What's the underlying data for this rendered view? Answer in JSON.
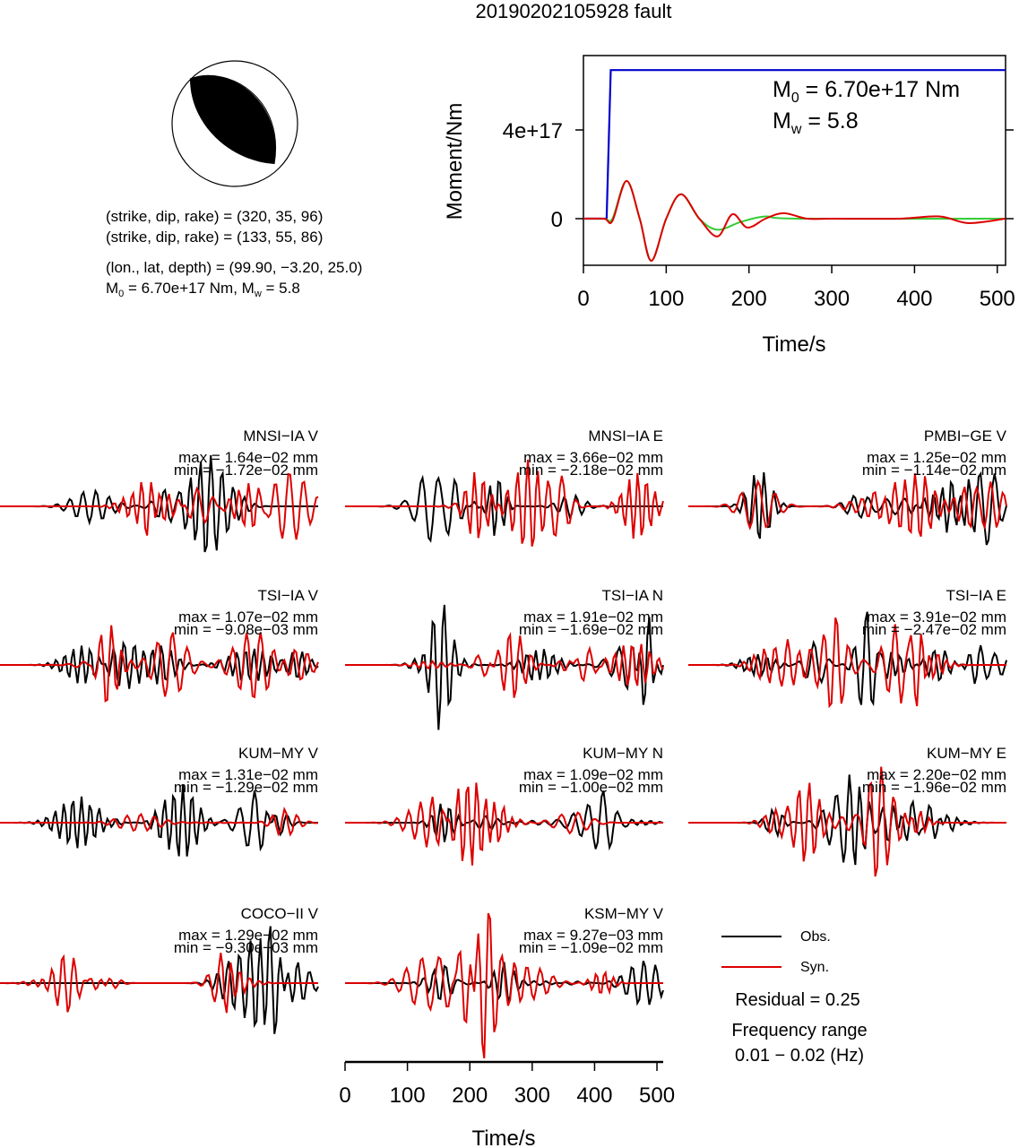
{
  "title": "20190202105928 fault",
  "colors": {
    "obs": "#000000",
    "syn": "#dd0000",
    "moment": "#0000cc",
    "stf": "#dd0000",
    "stf_model": "#33cc33"
  },
  "beachball": {
    "lines": [
      "(strike, dip, rake) = (320, 35, 96)",
      "(strike, dip, rake) = (133, 55, 86)",
      "(lon., lat, depth) = (99.90, −3.20, 25.0)"
    ],
    "m0_prefix": "M",
    "m0_sub": "0",
    "m0_rest": " = 6.70e+17 Nm, M",
    "mw_sub": "w",
    "mw_rest": " = 5.8"
  },
  "moment_panel": {
    "ylabel": "Moment/Nm",
    "xlabel": "Time/s",
    "xticks": [
      "0",
      "100",
      "200",
      "300",
      "400",
      "500"
    ],
    "yticks": [
      "0",
      "4e+17"
    ],
    "m0_label": {
      "prefix": "M",
      "sub": "0",
      "rest": " = 6.70e+17 Nm"
    },
    "mw_label": {
      "prefix": "M",
      "sub": "w",
      "rest": " = 5.8"
    }
  },
  "chart_data": [
    {
      "type": "line",
      "title": "",
      "xlabel": "Time/s",
      "ylabel": "Moment/Nm",
      "xlim": [
        0,
        510
      ],
      "yticks": [
        0,
        4e+17
      ],
      "series": [
        {
          "name": "",
          "color": "#0000cc",
          "x": [
            0,
            28,
            33,
            510
          ],
          "y": [
            0,
            0,
            6.7e+17,
            6.7e+17
          ]
        },
        {
          "name": "",
          "color": "#dd0000",
          "x": [
            0,
            25,
            35,
            52,
            68,
            82,
            100,
            118,
            140,
            162,
            180,
            198,
            220,
            242,
            270,
            300,
            380,
            430,
            465,
            510
          ],
          "y": [
            0,
            0,
            -1e+16,
            1.7e+17,
            0,
            -1.9e+17,
            0,
            1.1e+17,
            0,
            -8e+16,
            2e+16,
            -4e+16,
            0,
            2.5e+16,
            0,
            0,
            0,
            1e+16,
            -2e+16,
            0
          ]
        },
        {
          "name": "",
          "color": "#33cc33",
          "x": [
            0,
            25,
            35,
            52,
            68,
            82,
            100,
            118,
            140,
            162,
            190,
            220,
            260,
            510
          ],
          "y": [
            0,
            0,
            0,
            1.7e+17,
            0,
            -1.9e+17,
            0,
            1.1e+17,
            0,
            -5e+16,
            -1.5e+16,
            1e+16,
            0,
            0
          ]
        }
      ]
    },
    {
      "type": "line",
      "title": "",
      "xlabel": "Time/s",
      "xlim": [
        0,
        510
      ],
      "xticks": [
        0,
        100,
        200,
        300,
        400,
        500
      ],
      "legend": "bottom-right",
      "series_names": [
        "Obs.",
        "Syn."
      ]
    }
  ],
  "stations": [
    {
      "name": "MNSI−IA V",
      "max": "max = 1.64e−02 mm",
      "min": "min = −1.72e−02 mm"
    },
    {
      "name": "MNSI−IA E",
      "max": "max = 3.66e−02 mm",
      "min": "min = −2.18e−02 mm"
    },
    {
      "name": "PMBI−GE V",
      "max": "max = 1.25e−02 mm",
      "min": "min = −1.14e−02 mm"
    },
    {
      "name": "TSI−IA V",
      "max": "max = 1.07e−02 mm",
      "min": "min = −9.08e−03 mm"
    },
    {
      "name": "TSI−IA N",
      "max": "max = 1.91e−02 mm",
      "min": "min = −1.69e−02 mm"
    },
    {
      "name": "TSI−IA E",
      "max": "max = 3.91e−02 mm",
      "min": "min = −2.47e−02 mm"
    },
    {
      "name": "KUM−MY V",
      "max": "max = 1.31e−02 mm",
      "min": "min = −1.29e−02 mm"
    },
    {
      "name": "KUM−MY N",
      "max": "max = 1.09e−02 mm",
      "min": "min = −1.00e−02 mm"
    },
    {
      "name": "KUM−MY E",
      "max": "max = 2.20e−02 mm",
      "min": "min = −1.96e−02 mm"
    },
    {
      "name": "COCO−II V",
      "max": "max = 1.29e−02 mm",
      "min": "min = −9.30e−03 mm"
    },
    {
      "name": "KSM−MY V",
      "max": "max = 9.27e−03 mm",
      "min": "min = −1.09e−02 mm"
    }
  ],
  "legend": {
    "obs": "Obs.",
    "syn": "Syn."
  },
  "residual": "Residual = 0.25",
  "freq_label": "Frequency range",
  "freq_value": "0.01 − 0.02 (Hz)",
  "wave_axis": {
    "xlabel": "Time/s",
    "xticks": [
      "0",
      "100",
      "200",
      "300",
      "400",
      "500"
    ]
  }
}
